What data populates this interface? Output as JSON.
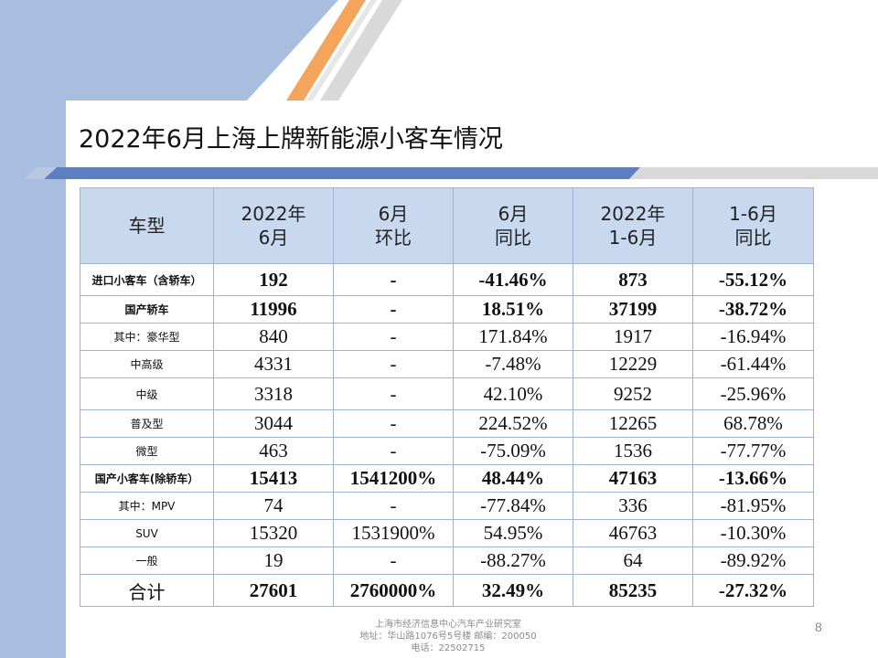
{
  "slide": {
    "title": "2022年6月上海上牌新能源小客车情况",
    "page_number": "8"
  },
  "table": {
    "headers": [
      [
        "车型"
      ],
      [
        "2022年",
        "6月"
      ],
      [
        "6月",
        "环比"
      ],
      [
        "6月",
        "同比"
      ],
      [
        "2022年",
        "1-6月"
      ],
      [
        "1-6月",
        "同比"
      ]
    ],
    "rows": [
      {
        "label": "进口小客车（含轿车）",
        "bold": true,
        "cells": [
          "192",
          "-",
          "-41.46%",
          "873",
          "-55.12%"
        ]
      },
      {
        "label": "国产轿车",
        "bold": true,
        "cells": [
          "11996",
          "-",
          "18.51%",
          "37199",
          "-38.72%"
        ]
      },
      {
        "label": "其中：豪华型",
        "bold": false,
        "cells": [
          "840",
          "-",
          "171.84%",
          "1917",
          "-16.94%"
        ]
      },
      {
        "label": "中高级",
        "bold": false,
        "cells": [
          "4331",
          "-",
          "-7.48%",
          "12229",
          "-61.44%"
        ]
      },
      {
        "label": "中级",
        "bold": false,
        "cells": [
          "3318",
          "-",
          "42.10%",
          "9252",
          "-25.96%"
        ]
      },
      {
        "label": "普及型",
        "bold": false,
        "cells": [
          "3044",
          "-",
          "224.52%",
          "12265",
          "68.78%"
        ]
      },
      {
        "label": "微型",
        "bold": false,
        "cells": [
          "463",
          "-",
          "-75.09%",
          "1536",
          "-77.77%"
        ]
      },
      {
        "label": "国产小客车(除轿车）",
        "bold": true,
        "cells": [
          "15413",
          "1541200%",
          "48.44%",
          "47163",
          "-13.66%"
        ]
      },
      {
        "label": "其中：MPV",
        "bold": false,
        "cells": [
          "74",
          "-",
          "-77.84%",
          "336",
          "-81.95%"
        ]
      },
      {
        "label": "SUV",
        "bold": false,
        "cells": [
          "15320",
          "1531900%",
          "54.95%",
          "46763",
          "-10.30%"
        ]
      },
      {
        "label": "一般",
        "bold": false,
        "cells": [
          "19",
          "-",
          "-88.27%",
          "64",
          "-89.92%"
        ]
      },
      {
        "label": "合计",
        "bold": true,
        "cells": [
          "27601",
          "2760000%",
          "32.49%",
          "85235",
          "-27.32%"
        ]
      }
    ]
  },
  "footer": {
    "line1": "上海市经济信息中心汽车产业研究室",
    "line2": "地址：华山路1076号5号楼   邮编：200050",
    "line3": "电话：22502715"
  },
  "colors": {
    "header_fill": "#c8d8ef",
    "left_band": "#a9bedf",
    "accent_orange": "#f5a45c",
    "stripe_gray": "#d9d9d9",
    "underline_blue": "#5b7fc1"
  }
}
